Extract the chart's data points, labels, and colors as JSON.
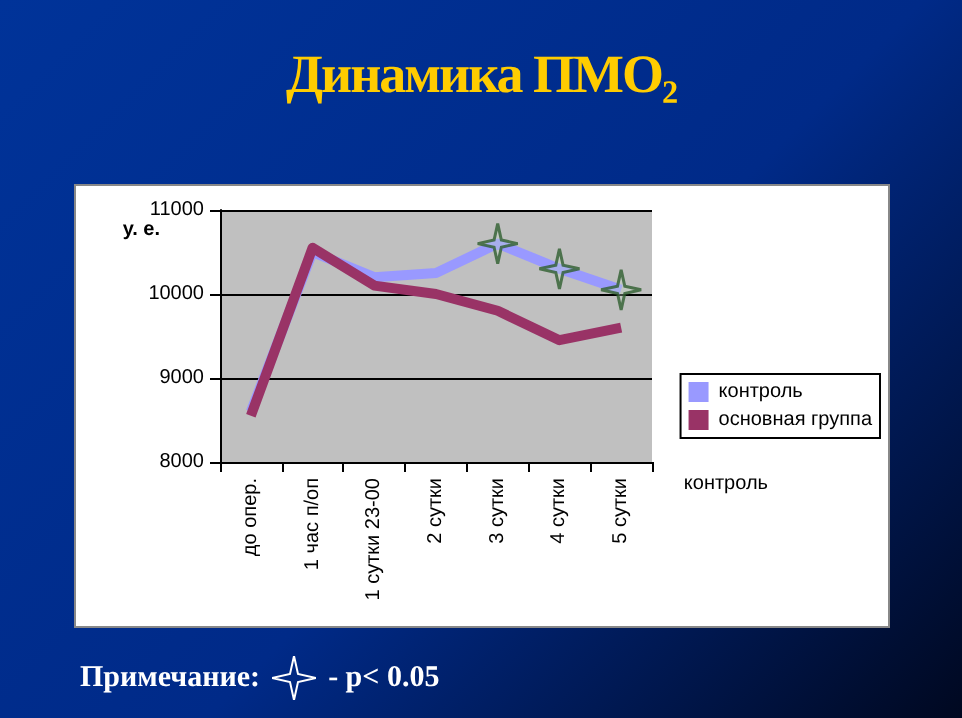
{
  "chart_data": {
    "type": "line",
    "title": "Динамика ПМО₂",
    "ylabel": "у. е.",
    "categories": [
      "до опер.",
      "1 час п/оп",
      "1 сутки 23-00",
      "2 сутки",
      "3 сутки",
      "4 сутки",
      "5 сутки"
    ],
    "series": [
      {
        "name": "контроль",
        "color": "#9999ff",
        "values": [
          8600,
          10500,
          10200,
          10250,
          10600,
          10300,
          10050
        ]
      },
      {
        "name": "основная группа",
        "color": "#993366",
        "values": [
          8550,
          10550,
          10100,
          10000,
          9800,
          9450,
          9600
        ]
      },
      {
        "type": "scatter",
        "marker": "star",
        "color": "#2e5e2e",
        "x": [
          "3 сутки",
          "4 сутки",
          "5 сутки"
        ],
        "values": [
          10600,
          10300,
          10050
        ]
      }
    ],
    "ylim": [
      8000,
      11000
    ],
    "yticks": [
      8000,
      9000,
      10000,
      11000
    ],
    "grid": "y",
    "legend": "right",
    "annotations": [
      "контроль",
      "Примечание:",
      "- p< 0.05"
    ]
  }
}
